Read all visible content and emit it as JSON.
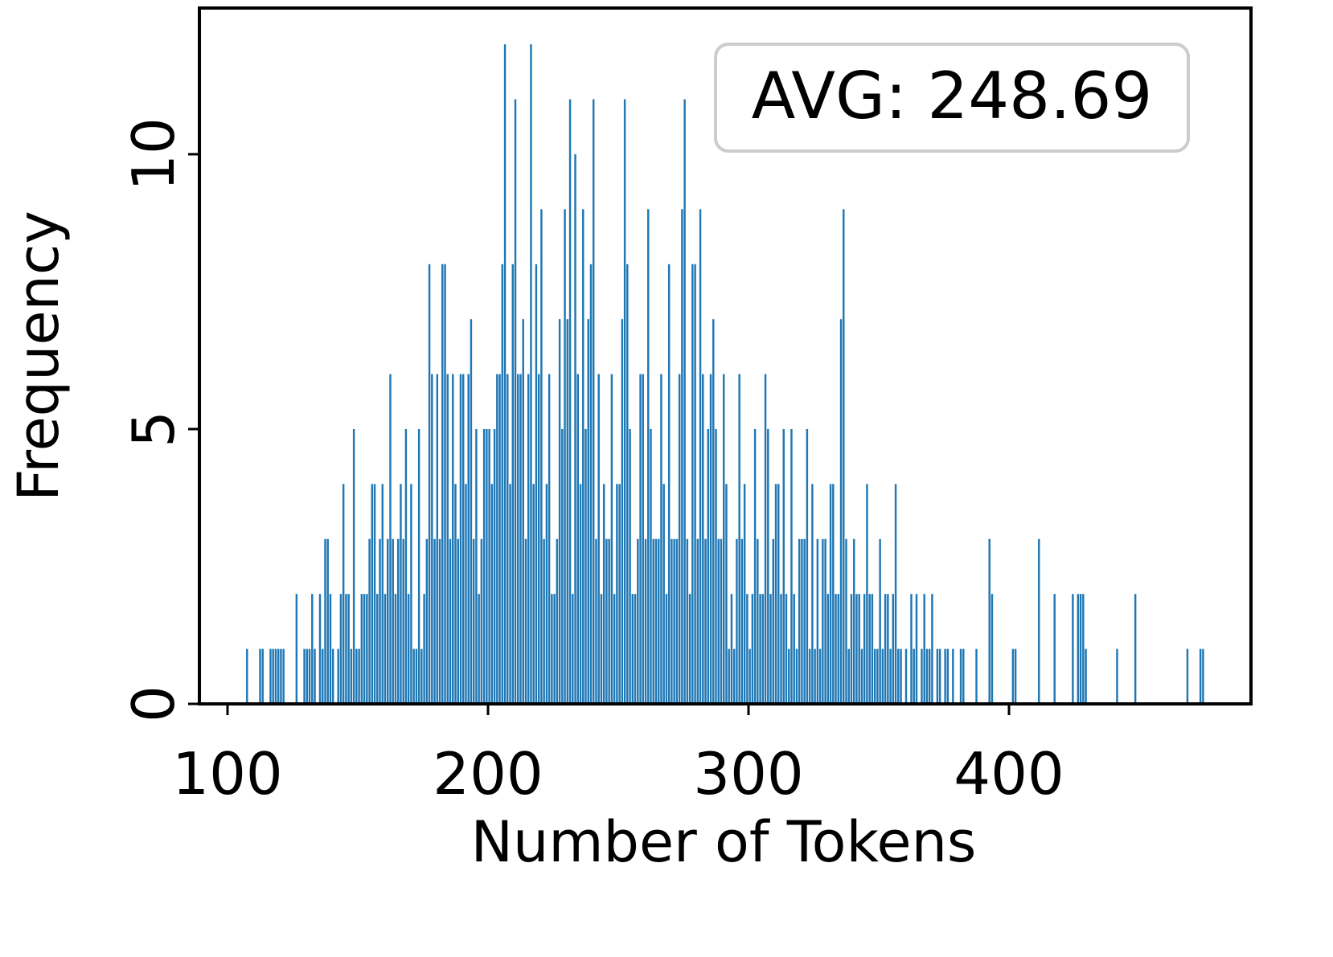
{
  "chart_data": {
    "type": "histogram",
    "annotation": "AVG: 248.69",
    "xlabel": "Number of Tokens",
    "ylabel": "Frequency",
    "color": "#1f77b4",
    "xlim": [
      89.2,
      492.9
    ],
    "ylim": [
      0,
      12.66
    ],
    "xticks": [
      100,
      200,
      300,
      400
    ],
    "yticks": [
      0,
      5,
      10
    ],
    "bins": [
      107,
      108,
      109,
      110,
      111,
      112,
      113,
      114,
      115,
      116,
      117,
      118,
      119,
      120,
      121,
      122,
      123,
      124,
      125,
      126,
      127,
      128,
      129,
      130,
      131,
      132,
      133,
      134,
      135,
      136,
      137,
      138,
      139,
      140,
      141,
      142,
      143,
      144,
      145,
      146,
      147,
      148,
      149,
      150,
      151,
      152,
      153,
      154,
      155,
      156,
      157,
      158,
      159,
      160,
      161,
      162,
      163,
      164,
      165,
      166,
      167,
      168,
      169,
      170,
      171,
      172,
      173,
      174,
      175,
      176,
      177,
      178,
      179,
      180,
      181,
      182,
      183,
      184,
      185,
      186,
      187,
      188,
      189,
      190,
      191,
      192,
      193,
      194,
      195,
      196,
      197,
      198,
      199,
      200,
      201,
      202,
      203,
      204,
      205,
      206,
      207,
      208,
      209,
      210,
      211,
      212,
      213,
      214,
      215,
      216,
      217,
      218,
      219,
      220,
      221,
      222,
      223,
      224,
      225,
      226,
      227,
      228,
      229,
      230,
      231,
      232,
      233,
      234,
      235,
      236,
      237,
      238,
      239,
      240,
      241,
      242,
      243,
      244,
      245,
      246,
      247,
      248,
      249,
      250,
      251,
      252,
      253,
      254,
      255,
      256,
      257,
      258,
      259,
      260,
      261,
      262,
      263,
      264,
      265,
      266,
      267,
      268,
      269,
      270,
      271,
      272,
      273,
      274,
      275,
      276,
      277,
      278,
      279,
      280,
      281,
      282,
      283,
      284,
      285,
      286,
      287,
      288,
      289,
      290,
      291,
      292,
      293,
      294,
      295,
      296,
      297,
      298,
      299,
      300,
      301,
      302,
      303,
      304,
      305,
      306,
      307,
      308,
      309,
      310,
      311,
      312,
      313,
      314,
      315,
      316,
      317,
      318,
      319,
      320,
      321,
      322,
      323,
      324,
      325,
      326,
      327,
      328,
      329,
      330,
      331,
      332,
      333,
      334,
      335,
      336,
      337,
      338,
      339,
      340,
      341,
      342,
      343,
      344,
      345,
      346,
      347,
      348,
      349,
      350,
      351,
      352,
      353,
      354,
      355,
      356,
      357,
      358,
      359,
      360,
      361,
      362,
      363,
      364,
      365,
      366,
      367,
      368,
      369,
      370,
      371,
      372,
      373,
      374,
      375,
      376,
      377,
      378,
      379,
      380,
      381,
      382,
      383,
      384,
      385,
      386,
      387,
      388,
      389,
      390,
      391,
      392,
      393,
      394,
      395,
      396,
      397,
      398,
      399,
      400,
      401,
      402,
      403,
      404,
      405,
      406,
      407,
      408,
      409,
      410,
      411,
      412,
      413,
      414,
      415,
      416,
      417,
      418,
      419,
      420,
      421,
      422,
      423,
      424,
      425,
      426,
      427,
      428,
      429,
      430,
      431,
      432,
      433,
      434,
      435,
      436,
      437,
      438,
      439,
      440,
      441,
      442,
      443,
      444,
      445,
      446,
      447,
      448,
      449,
      450,
      451,
      452,
      453,
      454,
      455,
      456,
      457,
      458,
      459,
      460,
      461,
      462,
      463,
      464,
      465,
      466,
      467,
      468,
      469,
      470,
      471,
      472,
      473,
      474,
      475
    ],
    "values": [
      1,
      0,
      0,
      0,
      0,
      1,
      1,
      0,
      0,
      1,
      1,
      1,
      1,
      1,
      1,
      0,
      0,
      0,
      0,
      2,
      0,
      0,
      1,
      1,
      1,
      2,
      1,
      0,
      2,
      1,
      3,
      3,
      2,
      1,
      0,
      1,
      2,
      4,
      2,
      2,
      1,
      5,
      1,
      1,
      2,
      2,
      2,
      3,
      4,
      4,
      2,
      3,
      4,
      2,
      3,
      6,
      3,
      2,
      3,
      4,
      3,
      5,
      2,
      4,
      1,
      1,
      5,
      1,
      2,
      3,
      8,
      6,
      3,
      6,
      3,
      8,
      8,
      6,
      3,
      6,
      4,
      3,
      6,
      6,
      4,
      6,
      7,
      3,
      5,
      2,
      3,
      5,
      5,
      5,
      4,
      5,
      6,
      6,
      8,
      12,
      6,
      4,
      8,
      11,
      6,
      6,
      7,
      3,
      6,
      12,
      4,
      8,
      6,
      9,
      3,
      4,
      6,
      2,
      2,
      3,
      7,
      5,
      9,
      7,
      11,
      2,
      10,
      6,
      4,
      9,
      5,
      7,
      8,
      11,
      3,
      6,
      2,
      4,
      3,
      3,
      6,
      2,
      4,
      4,
      7,
      11,
      8,
      5,
      2,
      2,
      3,
      6,
      6,
      3,
      9,
      5,
      3,
      3,
      3,
      6,
      4,
      2,
      8,
      3,
      3,
      3,
      6,
      9,
      11,
      3,
      2,
      8,
      8,
      3,
      9,
      6,
      3,
      5,
      6,
      7,
      5,
      3,
      3,
      6,
      4,
      1,
      2,
      1,
      3,
      6,
      3,
      4,
      2,
      1,
      2,
      5,
      3,
      2,
      2,
      6,
      5,
      2,
      3,
      4,
      4,
      2,
      5,
      2,
      1,
      5,
      2,
      1,
      3,
      3,
      3,
      5,
      1,
      4,
      1,
      3,
      1,
      3,
      3,
      2,
      4,
      4,
      2,
      2,
      7,
      9,
      3,
      1,
      2,
      3,
      2,
      2,
      1,
      2,
      4,
      2,
      2,
      1,
      1,
      3,
      1,
      2,
      2,
      1,
      2,
      4,
      1,
      1,
      0,
      1,
      0,
      2,
      1,
      2,
      0,
      1,
      2,
      1,
      1,
      2,
      0,
      1,
      1,
      0,
      1,
      1,
      0,
      1,
      0,
      0,
      1,
      1,
      0,
      0,
      0,
      0,
      1,
      0,
      0,
      0,
      0,
      3,
      2,
      0,
      0,
      0,
      0,
      0,
      0,
      0,
      1,
      1,
      0,
      0,
      0,
      0,
      0,
      0,
      0,
      0,
      3,
      0,
      0,
      0,
      0,
      0,
      2,
      0,
      0,
      0,
      0,
      0,
      0,
      2,
      0,
      2,
      2,
      2,
      1,
      0,
      0,
      0,
      0,
      0,
      0,
      0,
      0,
      0,
      0,
      0,
      1,
      0,
      0,
      0,
      0,
      0,
      0,
      2,
      0,
      0,
      0,
      0,
      0,
      0,
      0,
      0,
      0,
      0,
      0,
      0,
      0,
      0,
      0,
      0,
      0,
      0,
      0,
      1,
      0,
      0,
      0,
      0,
      1,
      1
    ]
  }
}
